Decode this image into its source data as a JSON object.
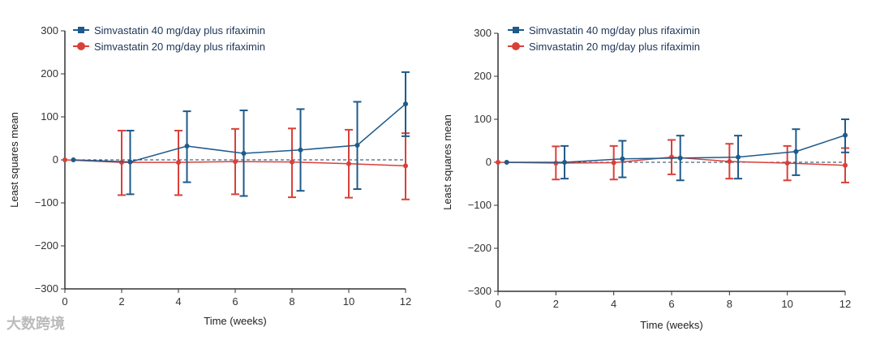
{
  "watermark": "大数跨境",
  "colors": {
    "blue": "#1f5a8a",
    "red": "#d9403a"
  },
  "chart_data": [
    {
      "type": "line",
      "xlabel": "Time (weeks)",
      "ylabel": "Least squares mean",
      "xlim": [
        0,
        12
      ],
      "ylim": [
        -300,
        300
      ],
      "xticks": [
        0,
        2,
        4,
        6,
        8,
        10,
        12
      ],
      "yticks": [
        -300,
        -200,
        -100,
        0,
        100,
        200,
        300
      ],
      "legend": "top-left",
      "series": [
        {
          "name": "Simvastatin 40 mg/day plus rifaximin",
          "color": "#1f5a8a",
          "marker": "square",
          "x": [
            0,
            2,
            4,
            6,
            8,
            10,
            12
          ],
          "y": [
            0,
            -5,
            32,
            15,
            23,
            34,
            130
          ],
          "lower": [
            null,
            -80,
            -52,
            -84,
            -72,
            -68,
            55
          ],
          "upper": [
            null,
            68,
            113,
            115,
            118,
            135,
            204
          ]
        },
        {
          "name": "Simvastatin 20 mg/day plus rifaximin",
          "color": "#d9403a",
          "marker": "circle",
          "x": [
            0,
            2,
            4,
            6,
            8,
            10,
            12
          ],
          "y": [
            0,
            -6,
            -6,
            -4,
            -5,
            -9,
            -14
          ],
          "lower": [
            null,
            -82,
            -82,
            -80,
            -87,
            -88,
            -92
          ],
          "upper": [
            null,
            68,
            68,
            72,
            73,
            70,
            62
          ]
        }
      ]
    },
    {
      "type": "line",
      "xlabel": "Time (weeks)",
      "ylabel": "Least squares mean",
      "xlim": [
        0,
        12
      ],
      "ylim": [
        -300,
        300
      ],
      "xticks": [
        0,
        2,
        4,
        6,
        8,
        10,
        12
      ],
      "yticks": [
        -300,
        -200,
        -100,
        0,
        100,
        200,
        300
      ],
      "legend": "top-left",
      "series": [
        {
          "name": "Simvastatin 40 mg/day plus rifaximin",
          "color": "#1f5a8a",
          "marker": "square",
          "x": [
            0,
            2,
            4,
            6,
            8,
            10,
            12
          ],
          "y": [
            0,
            0,
            8,
            10,
            12,
            25,
            63
          ],
          "lower": [
            null,
            -38,
            -35,
            -42,
            -38,
            -30,
            23
          ],
          "upper": [
            null,
            38,
            50,
            62,
            62,
            77,
            100
          ]
        },
        {
          "name": "Simvastatin 20 mg/day plus rifaximin",
          "color": "#d9403a",
          "marker": "circle",
          "x": [
            0,
            2,
            4,
            6,
            8,
            10,
            12
          ],
          "y": [
            0,
            -2,
            -1,
            12,
            2,
            -2,
            -7
          ],
          "lower": [
            null,
            -40,
            -40,
            -28,
            -38,
            -42,
            -47
          ],
          "upper": [
            null,
            37,
            38,
            52,
            43,
            38,
            33
          ]
        }
      ]
    }
  ]
}
